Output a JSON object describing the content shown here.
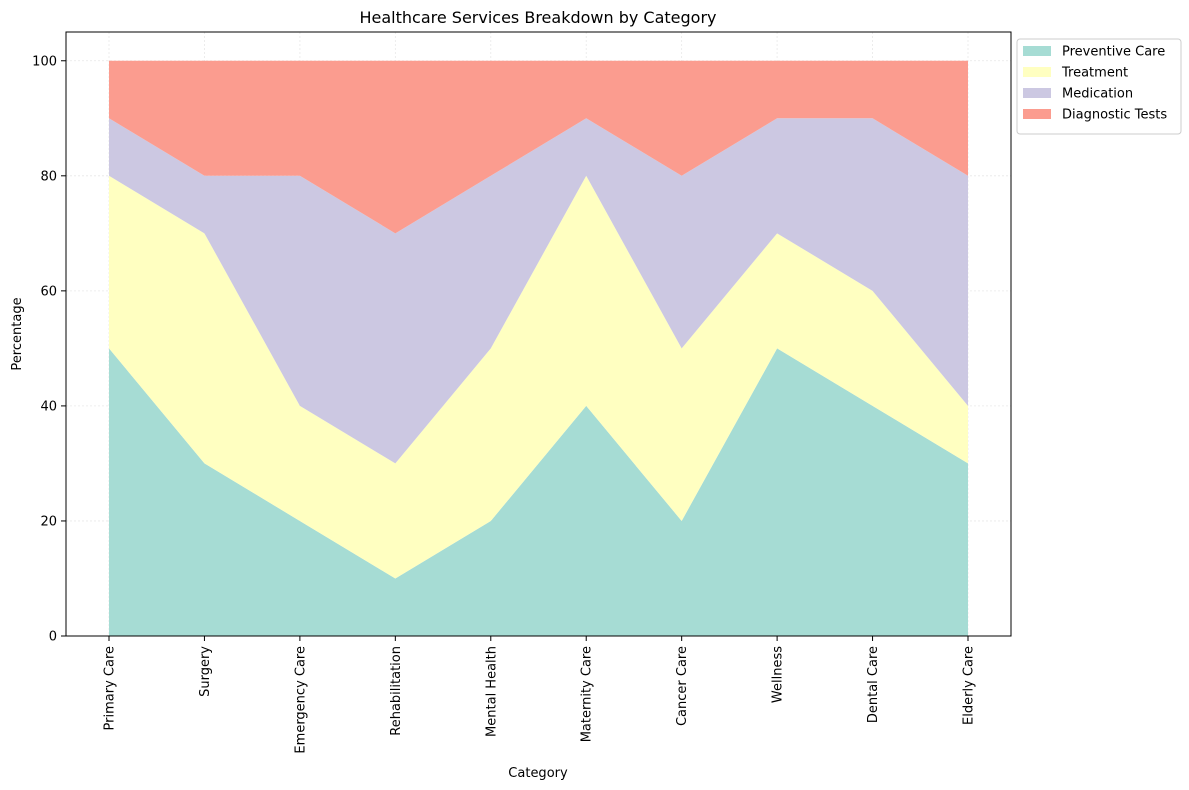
{
  "chart_data": {
    "type": "area",
    "stacked": true,
    "title": "Healthcare Services Breakdown by Category",
    "xlabel": "Category",
    "ylabel": "Percentage",
    "ylim": [
      0,
      105
    ],
    "yticks": [
      0,
      20,
      40,
      60,
      80,
      100
    ],
    "grid": true,
    "legend_position": "outside-top-right",
    "categories": [
      "Primary Care",
      "Surgery",
      "Emergency Care",
      "Rehabilitation",
      "Mental Health",
      "Maternity Care",
      "Cancer Care",
      "Wellness",
      "Dental Care",
      "Elderly Care"
    ],
    "series": [
      {
        "name": "Preventive Care",
        "color": "#a6dcd4",
        "values": [
          50,
          30,
          20,
          10,
          20,
          40,
          20,
          50,
          40,
          30
        ]
      },
      {
        "name": "Treatment",
        "color": "#ffffc1",
        "values": [
          30,
          40,
          20,
          20,
          30,
          40,
          30,
          20,
          20,
          10
        ]
      },
      {
        "name": "Medication",
        "color": "#ccc8e2",
        "values": [
          10,
          10,
          40,
          40,
          30,
          10,
          30,
          20,
          30,
          40
        ]
      },
      {
        "name": "Diagnostic Tests",
        "color": "#fb9c8f",
        "values": [
          10,
          20,
          20,
          30,
          20,
          10,
          20,
          10,
          10,
          20
        ]
      }
    ]
  }
}
